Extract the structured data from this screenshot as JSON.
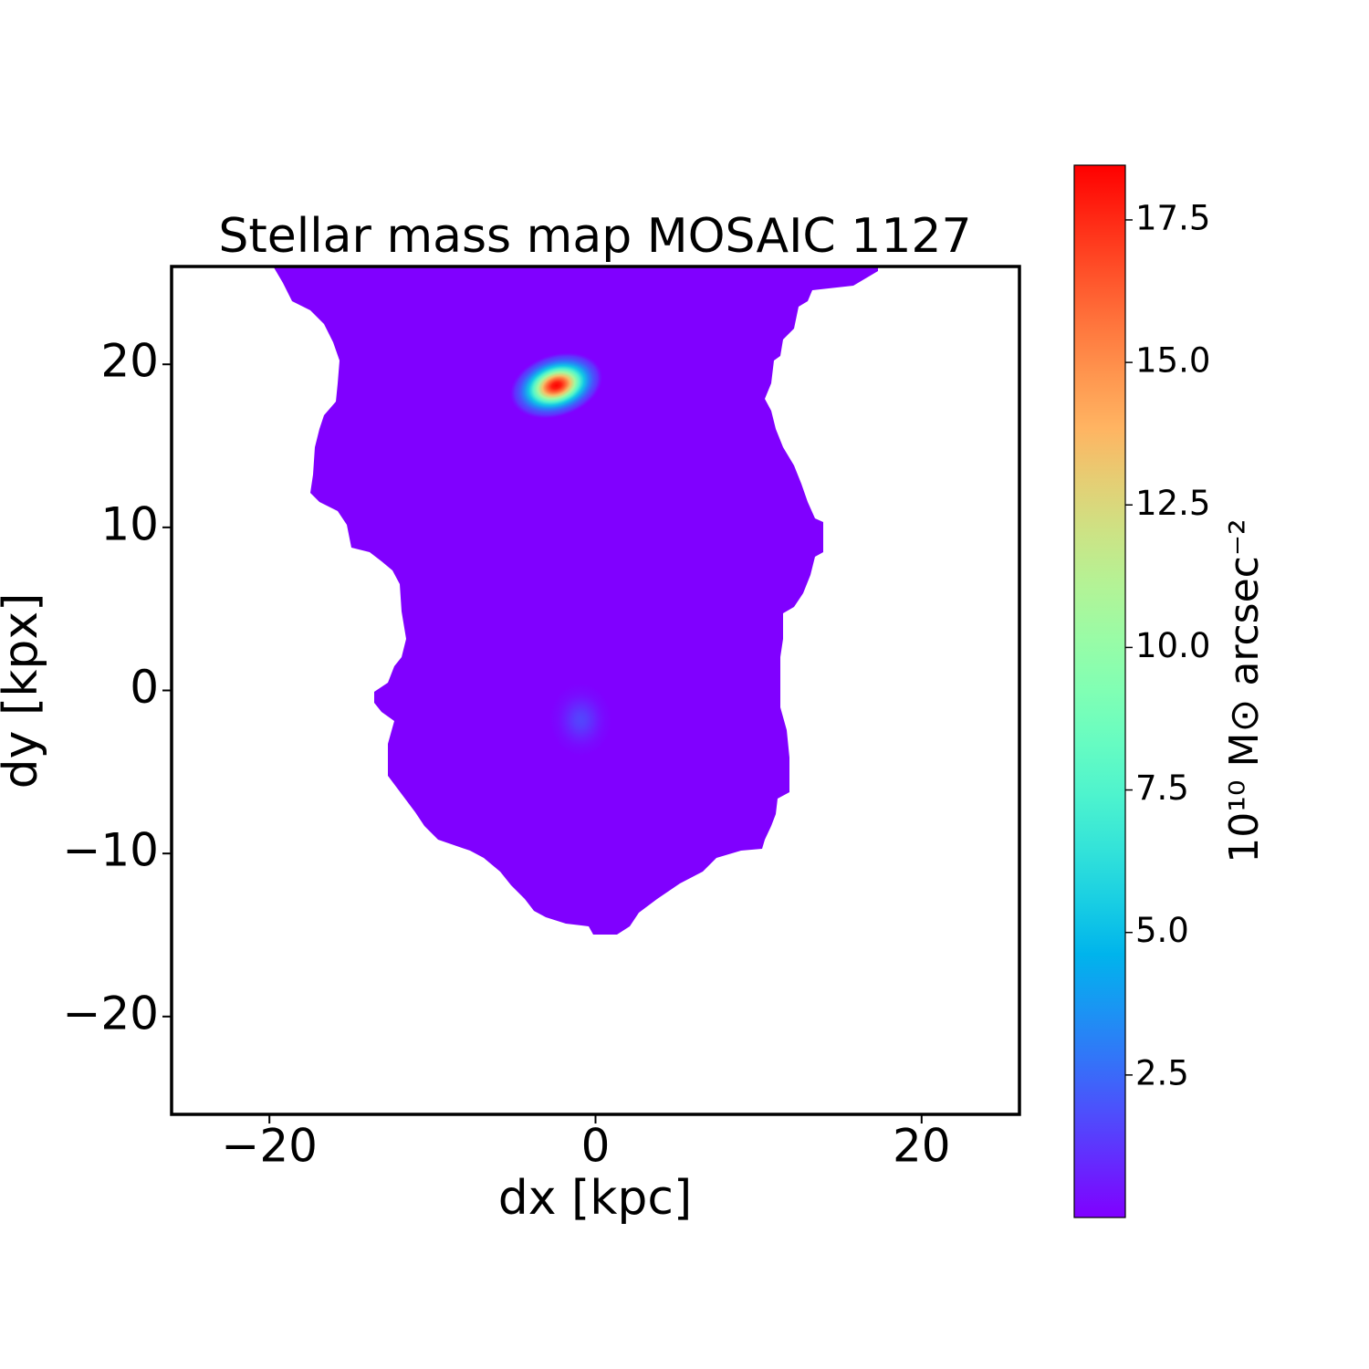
{
  "chart_data": {
    "type": "image",
    "title": "Stellar mass map MOSAIC 1127",
    "xlabel": "dx [kpc]",
    "ylabel": "dy [kpx]",
    "xlim": [
      -26,
      26
    ],
    "ylim": [
      -26,
      26
    ],
    "xticks": [
      {
        "value": -20,
        "label": "−20"
      },
      0,
      20
    ],
    "yticks": [
      {
        "value": -20,
        "label": "−20"
      },
      {
        "value": -10,
        "label": "−10"
      },
      0,
      10,
      20
    ],
    "peaks": [
      {
        "x": -2.4,
        "y": 18.7,
        "value": 18.4
      },
      {
        "x": -0.9,
        "y": -1.8,
        "value": 1.6
      }
    ],
    "colorbar": {
      "label": "10¹⁰ M⊙ arcsec⁻²",
      "lim": [
        0,
        18.46
      ],
      "ticks": [
        2.5,
        {
          "value": 5,
          "label": "5.0"
        },
        7.5,
        {
          "value": 10,
          "label": "10.0"
        },
        12.5,
        {
          "value": 15,
          "label": "15.0"
        },
        17.5
      ]
    }
  }
}
